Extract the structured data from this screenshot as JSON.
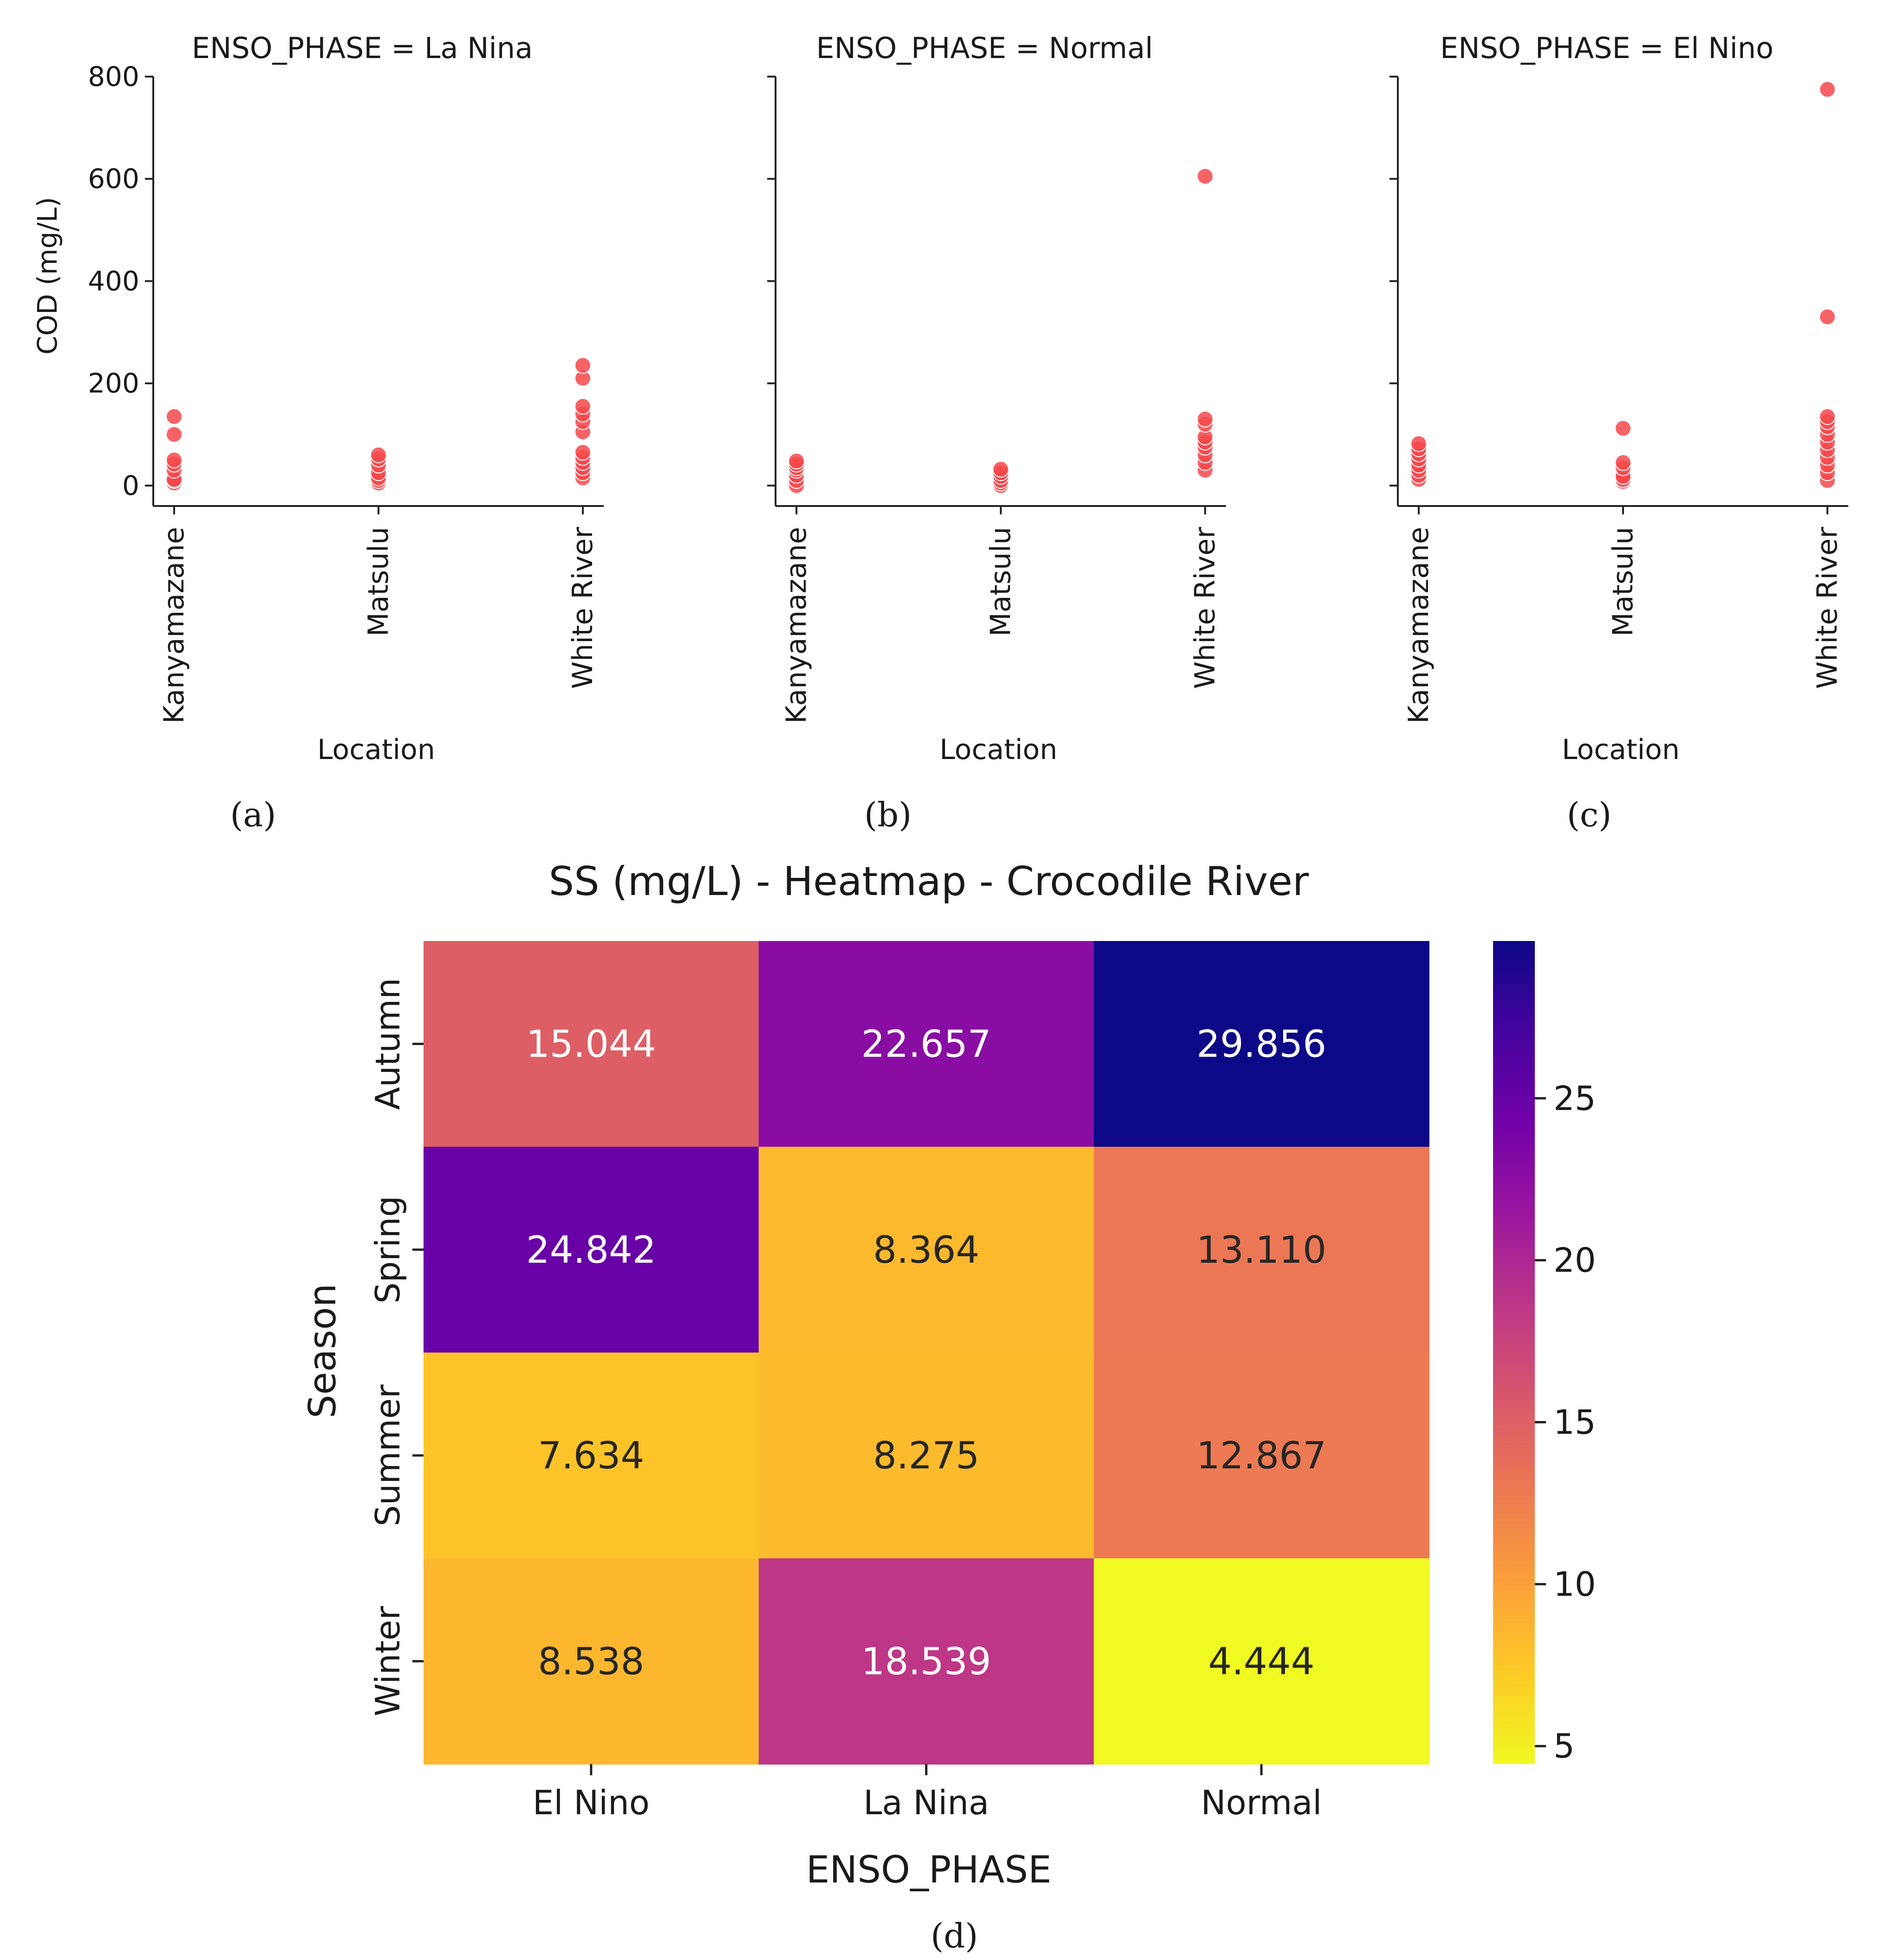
{
  "chart_data": [
    {
      "id": "a",
      "type": "scatter",
      "caption": "(a)",
      "title": "ENSO_PHASE = La Nina",
      "xlabel": "Location",
      "ylabel": "COD (mg/L)",
      "categories": [
        "Kanyamazane",
        "Matsulu",
        "White River"
      ],
      "yticks": [
        0,
        200,
        400,
        600,
        800
      ],
      "ylim": [
        -40,
        800
      ],
      "point_color": "#f4484c",
      "points": {
        "Kanyamazane": [
          5,
          10,
          12,
          30,
          42,
          50,
          100,
          135
        ],
        "Matsulu": [
          5,
          10,
          15,
          25,
          40,
          52,
          60
        ],
        "White River": [
          15,
          25,
          35,
          45,
          55,
          65,
          105,
          125,
          140,
          155,
          210,
          235
        ]
      }
    },
    {
      "id": "b",
      "type": "scatter",
      "caption": "(b)",
      "title": "ENSO_PHASE = Normal",
      "xlabel": "Location",
      "ylabel": "",
      "categories": [
        "Kanyamazane",
        "Matsulu",
        "White River"
      ],
      "yticks": [
        0,
        200,
        400,
        600,
        800
      ],
      "ylim": [
        -40,
        800
      ],
      "point_color": "#f4484c",
      "points": {
        "Kanyamazane": [
          0,
          10,
          20,
          30,
          35,
          42,
          48
        ],
        "Matsulu": [
          0,
          5,
          10,
          18,
          25,
          32
        ],
        "White River": [
          30,
          45,
          60,
          75,
          85,
          95,
          120,
          130,
          605
        ]
      }
    },
    {
      "id": "c",
      "type": "scatter",
      "caption": "(c)",
      "title": "ENSO_PHASE = El Nino",
      "xlabel": "Location",
      "ylabel": "",
      "categories": [
        "Kanyamazane",
        "Matsulu",
        "White River"
      ],
      "yticks": [
        0,
        200,
        400,
        600,
        800
      ],
      "ylim": [
        -40,
        800
      ],
      "point_color": "#f4484c",
      "points": {
        "Kanyamazane": [
          12,
          20,
          30,
          40,
          52,
          62,
          72,
          82
        ],
        "Matsulu": [
          8,
          12,
          18,
          35,
          45,
          112
        ],
        "White River": [
          10,
          25,
          40,
          55,
          70,
          85,
          100,
          115,
          125,
          135,
          330,
          775
        ]
      }
    },
    {
      "id": "d",
      "type": "heatmap",
      "caption": "(d)",
      "title": "SS (mg/L) - Heatmap - Crocodile River",
      "xlabel": "ENSO_PHASE",
      "ylabel": "Season",
      "x_categories": [
        "El Nino",
        "La Nina",
        "Normal"
      ],
      "y_categories": [
        "Autumn",
        "Spring",
        "Summer",
        "Winter"
      ],
      "values": [
        [
          15.044,
          22.657,
          29.856
        ],
        [
          24.842,
          8.364,
          13.11
        ],
        [
          7.634,
          8.275,
          12.867
        ],
        [
          8.538,
          18.539,
          4.444
        ]
      ],
      "cell_labels": [
        [
          "15.044",
          "22.657",
          "29.856"
        ],
        [
          "24.842",
          "8.364",
          "13.110"
        ],
        [
          "7.634",
          "8.275",
          "12.867"
        ],
        [
          "8.538",
          "18.539",
          "4.444"
        ]
      ],
      "colormap": "plasma_r",
      "colorbar_range": [
        4.444,
        29.856
      ],
      "colorbar_ticks": [
        5,
        10,
        15,
        20,
        25
      ]
    }
  ]
}
